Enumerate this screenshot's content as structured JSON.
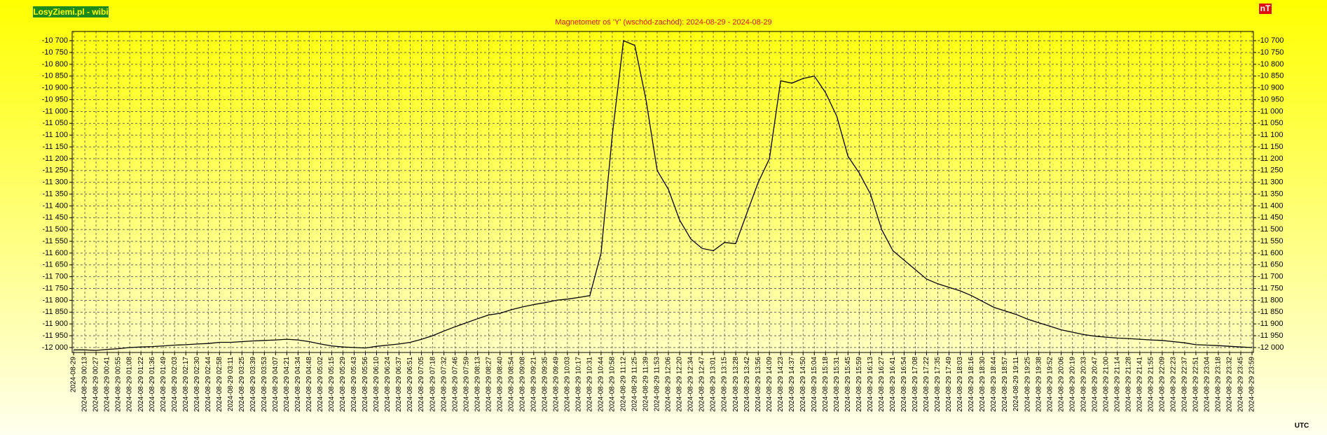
{
  "chart_data": {
    "type": "line",
    "title": "Magnetometr oś 'Y' (wschód-zachód): 2024-08-29 - 2024-08-29",
    "brand": "LosyZiemi.pl - wibi",
    "unit": "nT",
    "x_label": "UTC",
    "color": "#000000",
    "grid": true,
    "ylim": [
      -12021,
      -10661
    ],
    "yticks": [
      {
        "value": -10700,
        "label": "-10 700"
      },
      {
        "value": -10750,
        "label": "-10 750"
      },
      {
        "value": -10800,
        "label": "-10 800"
      },
      {
        "value": -10850,
        "label": "-10 850"
      },
      {
        "value": -10900,
        "label": "-10 900"
      },
      {
        "value": -10950,
        "label": "-10 950"
      },
      {
        "value": -11000,
        "label": "-11 000"
      },
      {
        "value": -11050,
        "label": "-11 050"
      },
      {
        "value": -11100,
        "label": "-11 100"
      },
      {
        "value": -11150,
        "label": "-11 150"
      },
      {
        "value": -11200,
        "label": "-11 200"
      },
      {
        "value": -11250,
        "label": "-11 250"
      },
      {
        "value": -11300,
        "label": "-11 300"
      },
      {
        "value": -11350,
        "label": "-11 350"
      },
      {
        "value": -11400,
        "label": "-11 400"
      },
      {
        "value": -11450,
        "label": "-11 450"
      },
      {
        "value": -11500,
        "label": "-11 500"
      },
      {
        "value": -11550,
        "label": "-11 550"
      },
      {
        "value": -11600,
        "label": "-11 600"
      },
      {
        "value": -11650,
        "label": "-11 650"
      },
      {
        "value": -11700,
        "label": "-11 700"
      },
      {
        "value": -11750,
        "label": "-11 750"
      },
      {
        "value": -11800,
        "label": "-11 800"
      },
      {
        "value": -11850,
        "label": "-11 850"
      },
      {
        "value": -11900,
        "label": "-11 900"
      },
      {
        "value": -11950,
        "label": "-11 950"
      },
      {
        "value": -12000,
        "label": "-12 000"
      }
    ],
    "categories": [
      "2024-08-29",
      "2024-08-29 00:13",
      "2024-08-29 00:27",
      "2024-08-29 00:41",
      "2024-08-29 00:55",
      "2024-08-29 01:08",
      "2024-08-29 01:22",
      "2024-08-29 01:36",
      "2024-08-29 01:49",
      "2024-08-29 02:03",
      "2024-08-29 02:17",
      "2024-08-29 02:30",
      "2024-08-29 02:44",
      "2024-08-29 02:58",
      "2024-08-29 03:11",
      "2024-08-29 03:25",
      "2024-08-29 03:39",
      "2024-08-29 03:53",
      "2024-08-29 04:07",
      "2024-08-29 04:21",
      "2024-08-29 04:34",
      "2024-08-29 04:48",
      "2024-08-29 05:02",
      "2024-08-29 05:15",
      "2024-08-29 05:29",
      "2024-08-29 05:43",
      "2024-08-29 05:56",
      "2024-08-29 06:10",
      "2024-08-29 06:24",
      "2024-08-29 06:37",
      "2024-08-29 06:51",
      "2024-08-29 07:05",
      "2024-08-29 07:18",
      "2024-08-29 07:32",
      "2024-08-29 07:46",
      "2024-08-29 07:59",
      "2024-08-29 08:13",
      "2024-08-29 08:27",
      "2024-08-29 08:40",
      "2024-08-29 08:54",
      "2024-08-29 09:08",
      "2024-08-29 09:21",
      "2024-08-29 09:35",
      "2024-08-29 09:49",
      "2024-08-29 10:03",
      "2024-08-29 10:17",
      "2024-08-29 10:31",
      "2024-08-29 10:44",
      "2024-08-29 10:58",
      "2024-08-29 11:12",
      "2024-08-29 11:25",
      "2024-08-29 11:39",
      "2024-08-29 11:53",
      "2024-08-29 12:06",
      "2024-08-29 12:20",
      "2024-08-29 12:34",
      "2024-08-29 12:47",
      "2024-08-29 13:01",
      "2024-08-29 13:15",
      "2024-08-29 13:28",
      "2024-08-29 13:42",
      "2024-08-29 13:56",
      "2024-08-29 14:09",
      "2024-08-29 14:23",
      "2024-08-29 14:37",
      "2024-08-29 14:50",
      "2024-08-29 15:04",
      "2024-08-29 15:18",
      "2024-08-29 15:31",
      "2024-08-29 15:45",
      "2024-08-29 15:59",
      "2024-08-29 16:13",
      "2024-08-29 16:27",
      "2024-08-29 16:41",
      "2024-08-29 16:54",
      "2024-08-29 17:08",
      "2024-08-29 17:22",
      "2024-08-29 17:35",
      "2024-08-29 17:49",
      "2024-08-29 18:03",
      "2024-08-29 18:16",
      "2024-08-29 18:30",
      "2024-08-29 18:44",
      "2024-08-29 18:57",
      "2024-08-29 19:11",
      "2024-08-29 19:25",
      "2024-08-29 19:38",
      "2024-08-29 19:52",
      "2024-08-29 20:06",
      "2024-08-29 20:19",
      "2024-08-29 20:33",
      "2024-08-29 20:47",
      "2024-08-29 21:00",
      "2024-08-29 21:14",
      "2024-08-29 21:28",
      "2024-08-29 21:41",
      "2024-08-29 21:55",
      "2024-08-29 22:09",
      "2024-08-29 22:23",
      "2024-08-29 22:37",
      "2024-08-29 22:51",
      "2024-08-29 23:04",
      "2024-08-29 23:18",
      "2024-08-29 23:32",
      "2024-08-29 23:45",
      "2024-08-29 23:59"
    ],
    "values": [
      -12010,
      -12010,
      -12012,
      -12008,
      -12005,
      -12000,
      -11998,
      -11996,
      -11993,
      -11990,
      -11988,
      -11985,
      -11983,
      -11978,
      -11978,
      -11975,
      -11972,
      -11970,
      -11968,
      -11965,
      -11968,
      -11975,
      -11985,
      -11993,
      -11998,
      -12000,
      -12002,
      -11995,
      -11990,
      -11985,
      -11978,
      -11965,
      -11950,
      -11930,
      -11912,
      -11895,
      -11878,
      -11862,
      -11855,
      -11840,
      -11828,
      -11818,
      -11810,
      -11800,
      -11795,
      -11788,
      -11780,
      -11600,
      -11100,
      -10700,
      -10720,
      -10950,
      -11250,
      -11330,
      -11460,
      -11540,
      -11580,
      -11590,
      -11555,
      -11560,
      -11430,
      -11300,
      -11200,
      -10870,
      -10880,
      -10860,
      -10850,
      -10920,
      -11020,
      -11190,
      -11260,
      -11350,
      -11500,
      -11590,
      -11630,
      -11670,
      -11710,
      -11730,
      -11745,
      -11760,
      -11780,
      -11805,
      -11830,
      -11845,
      -11860,
      -11880,
      -11895,
      -11910,
      -11925,
      -11935,
      -11945,
      -11952,
      -11956,
      -11960,
      -11962,
      -11965,
      -11968,
      -11970,
      -11975,
      -11980,
      -11988,
      -11990,
      -11992,
      -11995,
      -11998,
      -12000
    ]
  }
}
